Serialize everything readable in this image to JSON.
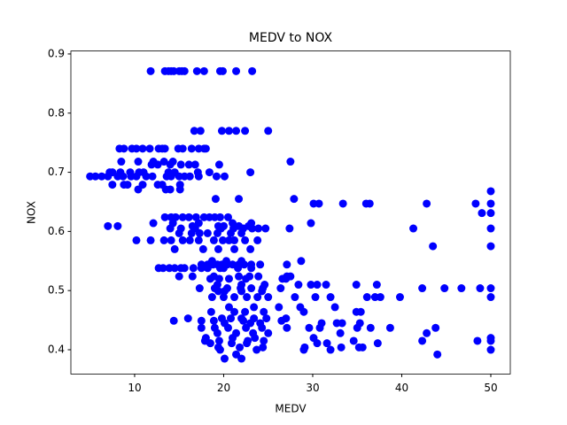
{
  "chart_data": {
    "type": "scatter",
    "title": "MEDV to NOX",
    "x_label": "MEDV",
    "y_label": "NOX",
    "color": "#0000ff",
    "x": [
      11.8,
      13.4,
      13.8,
      14.1,
      14.4,
      15.0,
      15.3,
      15.6,
      17.0,
      17.8,
      19.6,
      19.9,
      21.4,
      23.2,
      16.7,
      17.4,
      19.8,
      20.6,
      21.4,
      22.4,
      25.0,
      8.3,
      8.8,
      9.7,
      10.2,
      10.9,
      11.7,
      12.7,
      13.1,
      13.4,
      14.9,
      15.4,
      16.4,
      17.2,
      17.8,
      18.0,
      8.5,
      10.4,
      12.1,
      13.3,
      14.3,
      27.5,
      11.9,
      12.6,
      14.0,
      15.2,
      16.1,
      16.8,
      19.5,
      7.2,
      7.5,
      8.4,
      9.5,
      10.5,
      11.0,
      13.8,
      14.5,
      17.1,
      18.4,
      23.0,
      5.0,
      5.6,
      6.3,
      7.0,
      8.1,
      8.7,
      9.6,
      10.2,
      11.3,
      12.0,
      13.6,
      14.1,
      15.0,
      15.6,
      16.2,
      17.2,
      19.2,
      20.1,
      7.5,
      8.8,
      9.2,
      10.9,
      12.6,
      13.1,
      15.1,
      10.4,
      13.5,
      14.0,
      15.1,
      50,
      19.1,
      21.7,
      27.9,
      30.1,
      30.7,
      33.4,
      36.0,
      36.4,
      42.8,
      48.3,
      50,
      50,
      49.0,
      13.4,
      14.1,
      14.6,
      15.4,
      16.1,
      16.9,
      17.8,
      18.4,
      19.0,
      19.6,
      20.5,
      12.1,
      14.3,
      17.2,
      21.0,
      23.1,
      29.8,
      7.0,
      8.1,
      16.5,
      19.4,
      20.0,
      21.7,
      22.8,
      14.0,
      15.2,
      16.8,
      19.7,
      21.1,
      22.2,
      23.2,
      23.9,
      24.7,
      27.4,
      41.3,
      50,
      15.0,
      16.4,
      17.3,
      18.2,
      19.3,
      20.8,
      22.0,
      10.2,
      11.8,
      13.3,
      14.1,
      15.4,
      16.2,
      17.2,
      18.9,
      19.9,
      20.6,
      21.2,
      22.4,
      23.8,
      43.5,
      50,
      14.5,
      17.7,
      19.4,
      21.2,
      23.0,
      18.7,
      20.3,
      22.0,
      28.7,
      17.5,
      18.2,
      18.8,
      19.3,
      19.8,
      20.4,
      21.0,
      21.7,
      22.3,
      23.1,
      24.1,
      27.1,
      12.7,
      13.2,
      13.9,
      14.5,
      15.2,
      15.6,
      16.6,
      17.5,
      18.2,
      19.6,
      20.0,
      21.6,
      23.1,
      15.0,
      16.5,
      18.9,
      21.7,
      22.9,
      23.9,
      27.1,
      27.5,
      18.5,
      19.5,
      20.6,
      22.5,
      26.6,
      27.0,
      19.3,
      22.0,
      24.6,
      28.4,
      29.8,
      30.5,
      31.5,
      34.9,
      37.2,
      17.3,
      19.0,
      20.4,
      21.9,
      23.1,
      24.4,
      26.4,
      42.3,
      44.8,
      46.7,
      48.8,
      50,
      19.4,
      20.1,
      22.0,
      24.3,
      18.7,
      20.0,
      21.2,
      22.6,
      23.8,
      25.0,
      28.0,
      30.3,
      32.0,
      36.1,
      37.0,
      37.6,
      39.8,
      50,
      20.6,
      23.4,
      26.2,
      28.6,
      32.5,
      18.6,
      21.2,
      22.4,
      24.5,
      29.0,
      34.9,
      35.4,
      16.0,
      19.8,
      20.8,
      22.0,
      23.4,
      24.8,
      27.0,
      14.4,
      17.5,
      18.9,
      22.2,
      26.5,
      20.1,
      23.0,
      24.1,
      31.0,
      32.7,
      33.3,
      35.3,
      17.5,
      19.0,
      20.5,
      22.5,
      24.3,
      27.1,
      29.6,
      30.8,
      35.0,
      36.5,
      38.7,
      43.8,
      19.3,
      21.4,
      23.3,
      25.0,
      33.1,
      42.8,
      18.0,
      21.0,
      23.5,
      30.1,
      50,
      17.9,
      19.5,
      22.7,
      24.5,
      34.6,
      42.3,
      48.5,
      50,
      18.5,
      20.9,
      22.6,
      30.5,
      31.6,
      37.3,
      19.4,
      21.8,
      24.4,
      29.1,
      33.2,
      35.2,
      35.6,
      19.6,
      23.7,
      29.0,
      32.0,
      50,
      21.4,
      44.0,
      20.1,
      22.0
    ],
    "values": [
      0.871,
      0.871,
      0.871,
      0.871,
      0.871,
      0.871,
      0.871,
      0.871,
      0.871,
      0.871,
      0.871,
      0.871,
      0.871,
      0.871,
      0.77,
      0.77,
      0.77,
      0.77,
      0.77,
      0.77,
      0.77,
      0.74,
      0.74,
      0.74,
      0.74,
      0.74,
      0.74,
      0.74,
      0.74,
      0.74,
      0.74,
      0.74,
      0.74,
      0.74,
      0.74,
      0.74,
      0.718,
      0.718,
      0.718,
      0.718,
      0.718,
      0.718,
      0.713,
      0.713,
      0.713,
      0.713,
      0.713,
      0.713,
      0.713,
      0.7,
      0.7,
      0.7,
      0.7,
      0.7,
      0.7,
      0.7,
      0.7,
      0.7,
      0.7,
      0.7,
      0.693,
      0.693,
      0.693,
      0.693,
      0.693,
      0.693,
      0.693,
      0.693,
      0.693,
      0.693,
      0.693,
      0.693,
      0.693,
      0.693,
      0.693,
      0.693,
      0.693,
      0.693,
      0.679,
      0.679,
      0.679,
      0.679,
      0.679,
      0.679,
      0.679,
      0.671,
      0.671,
      0.671,
      0.671,
      0.668,
      0.655,
      0.655,
      0.655,
      0.647,
      0.647,
      0.647,
      0.647,
      0.647,
      0.647,
      0.647,
      0.647,
      0.631,
      0.631,
      0.624,
      0.624,
      0.624,
      0.624,
      0.624,
      0.624,
      0.624,
      0.624,
      0.624,
      0.624,
      0.624,
      0.614,
      0.614,
      0.614,
      0.614,
      0.614,
      0.614,
      0.609,
      0.609,
      0.609,
      0.609,
      0.609,
      0.609,
      0.609,
      0.605,
      0.605,
      0.605,
      0.605,
      0.605,
      0.605,
      0.605,
      0.605,
      0.605,
      0.605,
      0.605,
      0.605,
      0.597,
      0.597,
      0.597,
      0.597,
      0.597,
      0.597,
      0.597,
      0.585,
      0.585,
      0.585,
      0.585,
      0.585,
      0.585,
      0.585,
      0.585,
      0.585,
      0.585,
      0.585,
      0.585,
      0.585,
      0.575,
      0.575,
      0.57,
      0.57,
      0.57,
      0.57,
      0.57,
      0.55,
      0.55,
      0.55,
      0.55,
      0.544,
      0.544,
      0.544,
      0.544,
      0.544,
      0.544,
      0.544,
      0.544,
      0.544,
      0.544,
      0.544,
      0.544,
      0.538,
      0.538,
      0.538,
      0.538,
      0.538,
      0.538,
      0.538,
      0.538,
      0.538,
      0.538,
      0.538,
      0.538,
      0.538,
      0.524,
      0.524,
      0.524,
      0.524,
      0.524,
      0.524,
      0.524,
      0.524,
      0.52,
      0.52,
      0.52,
      0.52,
      0.52,
      0.52,
      0.51,
      0.51,
      0.51,
      0.51,
      0.51,
      0.51,
      0.51,
      0.51,
      0.51,
      0.504,
      0.504,
      0.504,
      0.504,
      0.504,
      0.504,
      0.504,
      0.504,
      0.504,
      0.504,
      0.504,
      0.504,
      0.499,
      0.499,
      0.499,
      0.499,
      0.489,
      0.489,
      0.489,
      0.489,
      0.489,
      0.489,
      0.489,
      0.489,
      0.489,
      0.489,
      0.489,
      0.489,
      0.489,
      0.489,
      0.472,
      0.472,
      0.472,
      0.472,
      0.472,
      0.464,
      0.464,
      0.464,
      0.464,
      0.464,
      0.464,
      0.464,
      0.453,
      0.453,
      0.453,
      0.453,
      0.453,
      0.453,
      0.453,
      0.449,
      0.449,
      0.449,
      0.449,
      0.449,
      0.445,
      0.445,
      0.445,
      0.445,
      0.445,
      0.445,
      0.445,
      0.437,
      0.437,
      0.437,
      0.437,
      0.437,
      0.437,
      0.437,
      0.437,
      0.437,
      0.437,
      0.437,
      0.437,
      0.428,
      0.428,
      0.428,
      0.428,
      0.428,
      0.428,
      0.42,
      0.42,
      0.42,
      0.42,
      0.42,
      0.415,
      0.415,
      0.415,
      0.415,
      0.415,
      0.415,
      0.415,
      0.415,
      0.411,
      0.411,
      0.411,
      0.411,
      0.411,
      0.411,
      0.404,
      0.404,
      0.404,
      0.404,
      0.404,
      0.404,
      0.404,
      0.4,
      0.4,
      0.4,
      0.4,
      0.4,
      0.392,
      0.392,
      0.385,
      0.385
    ],
    "xlim": [
      2.84,
      52.19
    ],
    "ylim": [
      0.359,
      0.905
    ],
    "xticks": [
      10,
      20,
      30,
      40,
      50
    ],
    "yticks": [
      0.4,
      0.5,
      0.6,
      0.7,
      0.8,
      0.9
    ],
    "grid": false
  }
}
